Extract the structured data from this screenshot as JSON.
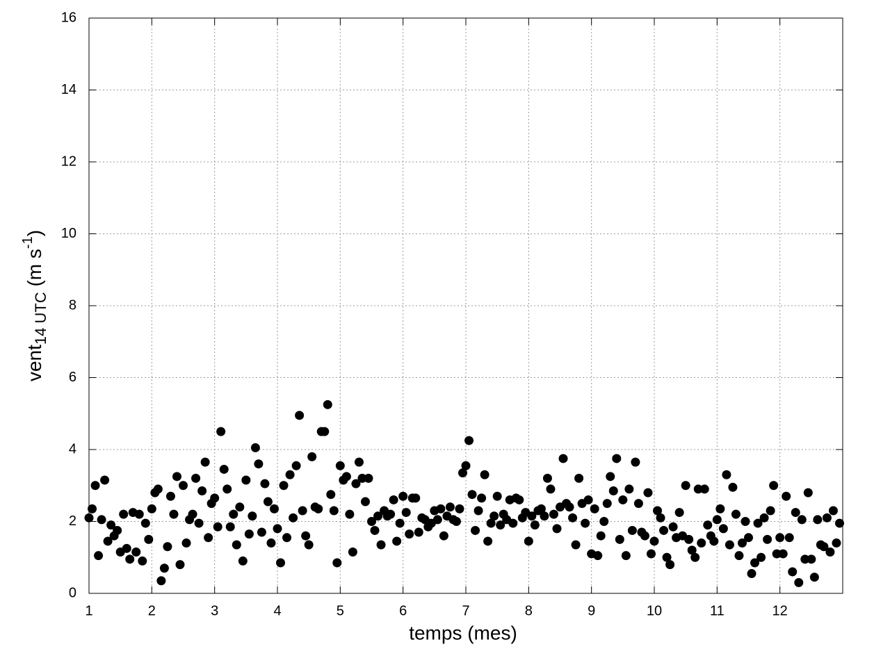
{
  "chart_data": {
    "type": "scatter",
    "xlabel": "temps (mes)",
    "ylabel": {
      "main": "vent",
      "sub": "14 UTC",
      "mid": " (m s",
      "sup": "-1",
      "end": ")"
    },
    "xlim": [
      1,
      13
    ],
    "ylim": [
      0,
      16
    ],
    "xticks": [
      1,
      2,
      3,
      4,
      5,
      6,
      7,
      8,
      9,
      10,
      11,
      12
    ],
    "yticks": [
      0,
      2,
      4,
      6,
      8,
      10,
      12,
      14,
      16
    ],
    "grid": true,
    "color": "#000000",
    "x": [
      1,
      1.05,
      1.1,
      1.15,
      1.2,
      1.25,
      1.3,
      1.35,
      1.4,
      1.45,
      1.5,
      1.55,
      1.6,
      1.65,
      1.7,
      1.75,
      1.8,
      1.85,
      1.9,
      1.95,
      2,
      2.05,
      2.1,
      2.15,
      2.2,
      2.25,
      2.3,
      2.35,
      2.4,
      2.45,
      2.5,
      2.55,
      2.6,
      2.65,
      2.7,
      2.75,
      2.8,
      2.85,
      2.9,
      2.95,
      3,
      3.05,
      3.1,
      3.15,
      3.2,
      3.25,
      3.3,
      3.35,
      3.4,
      3.45,
      3.5,
      3.55,
      3.6,
      3.65,
      3.7,
      3.75,
      3.8,
      3.85,
      3.9,
      3.95,
      4,
      4.05,
      4.1,
      4.15,
      4.2,
      4.25,
      4.3,
      4.35,
      4.4,
      4.45,
      4.5,
      4.55,
      4.6,
      4.65,
      4.7,
      4.75,
      4.8,
      4.85,
      4.9,
      4.95,
      5,
      5.05,
      5.1,
      5.15,
      5.2,
      5.25,
      5.3,
      5.35,
      5.4,
      5.45,
      5.5,
      5.55,
      5.6,
      5.65,
      5.7,
      5.75,
      5.8,
      5.85,
      5.9,
      5.95,
      6,
      6.05,
      6.1,
      6.15,
      6.2,
      6.25,
      6.3,
      6.35,
      6.4,
      6.45,
      6.5,
      6.55,
      6.6,
      6.65,
      6.7,
      6.75,
      6.8,
      6.85,
      6.9,
      6.95,
      7,
      7.05,
      7.1,
      7.15,
      7.2,
      7.25,
      7.3,
      7.35,
      7.4,
      7.45,
      7.5,
      7.55,
      7.6,
      7.65,
      7.7,
      7.75,
      7.8,
      7.85,
      7.9,
      7.95,
      8,
      8.05,
      8.1,
      8.15,
      8.2,
      8.25,
      8.3,
      8.35,
      8.4,
      8.45,
      8.5,
      8.55,
      8.6,
      8.65,
      8.7,
      8.75,
      8.8,
      8.85,
      8.9,
      8.95,
      9,
      9.05,
      9.1,
      9.15,
      9.2,
      9.25,
      9.3,
      9.35,
      9.4,
      9.45,
      9.5,
      9.55,
      9.6,
      9.65,
      9.7,
      9.75,
      9.8,
      9.85,
      9.9,
      9.95,
      10,
      10.05,
      10.1,
      10.15,
      10.2,
      10.25,
      10.3,
      10.35,
      10.4,
      10.45,
      10.5,
      10.55,
      10.6,
      10.65,
      10.7,
      10.75,
      10.8,
      10.85,
      10.9,
      10.95,
      11,
      11.05,
      11.1,
      11.15,
      11.2,
      11.25,
      11.3,
      11.35,
      11.4,
      11.45,
      11.5,
      11.55,
      11.6,
      11.65,
      11.7,
      11.75,
      11.8,
      11.85,
      11.9,
      11.95,
      12,
      12.05,
      12.1,
      12.15,
      12.2,
      12.25,
      12.3,
      12.35,
      12.4,
      12.45,
      12.5,
      12.55,
      12.6,
      12.65,
      12.7,
      12.75,
      12.8,
      12.85,
      12.9,
      12.95
    ],
    "values": [
      2.1,
      2.35,
      3.0,
      1.05,
      2.05,
      3.15,
      1.45,
      1.9,
      1.6,
      1.75,
      1.15,
      2.2,
      1.25,
      0.95,
      2.25,
      1.15,
      2.2,
      0.9,
      1.95,
      1.5,
      2.35,
      2.8,
      2.9,
      0.35,
      0.7,
      1.3,
      2.7,
      2.2,
      3.25,
      0.8,
      3.0,
      1.4,
      2.05,
      2.2,
      3.2,
      1.95,
      2.85,
      3.65,
      1.55,
      2.5,
      2.65,
      1.85,
      4.5,
      3.45,
      2.9,
      1.85,
      2.2,
      1.35,
      2.4,
      0.9,
      3.15,
      1.65,
      2.15,
      4.05,
      3.6,
      1.7,
      3.05,
      2.55,
      1.4,
      2.35,
      1.8,
      0.85,
      3.0,
      1.55,
      3.3,
      2.1,
      3.55,
      4.95,
      2.3,
      1.6,
      1.35,
      3.8,
      2.4,
      2.35,
      4.5,
      4.5,
      5.25,
      2.75,
      2.3,
      0.85,
      3.55,
      3.15,
      3.25,
      2.2,
      1.15,
      3.05,
      3.65,
      3.2,
      2.55,
      3.2,
      2.0,
      1.75,
      2.15,
      1.35,
      2.3,
      2.15,
      2.2,
      2.6,
      1.45,
      1.95,
      2.7,
      2.25,
      1.65,
      2.65,
      2.65,
      1.7,
      2.1,
      2.05,
      1.85,
      1.95,
      2.3,
      2.05,
      2.35,
      1.6,
      2.15,
      2.4,
      2.05,
      2.0,
      2.35,
      3.35,
      3.55,
      4.25,
      2.75,
      1.75,
      2.3,
      2.65,
      3.3,
      1.45,
      1.95,
      2.15,
      2.7,
      1.9,
      2.2,
      2.05,
      2.6,
      1.95,
      2.65,
      2.6,
      2.1,
      2.25,
      1.45,
      2.15,
      1.9,
      2.3,
      2.35,
      2.15,
      3.2,
      2.9,
      2.2,
      1.8,
      2.4,
      3.75,
      2.5,
      2.4,
      2.1,
      1.35,
      3.2,
      2.5,
      1.95,
      2.6,
      1.1,
      2.35,
      1.05,
      1.6,
      2.0,
      2.5,
      3.25,
      2.85,
      3.75,
      1.5,
      2.6,
      1.05,
      2.9,
      1.75,
      3.65,
      2.5,
      1.7,
      1.6,
      2.8,
      1.1,
      1.45,
      2.3,
      2.1,
      1.75,
      1.0,
      0.8,
      1.85,
      1.55,
      2.25,
      1.6,
      3.0,
      1.5,
      1.2,
      1.0,
      2.9,
      1.4,
      2.9,
      1.9,
      1.6,
      1.45,
      2.05,
      2.35,
      1.8,
      3.3,
      1.35,
      2.95,
      2.2,
      1.05,
      1.4,
      2.0,
      1.55,
      0.55,
      0.85,
      1.95,
      1.0,
      2.1,
      1.5,
      2.3,
      3.0,
      1.1,
      1.55,
      1.1,
      2.7,
      1.55,
      0.6,
      2.25,
      0.3,
      2.05,
      0.95,
      2.8,
      0.95,
      0.45,
      2.05,
      1.35,
      1.3,
      2.1,
      1.15,
      2.3,
      1.4,
      1.95
    ]
  }
}
